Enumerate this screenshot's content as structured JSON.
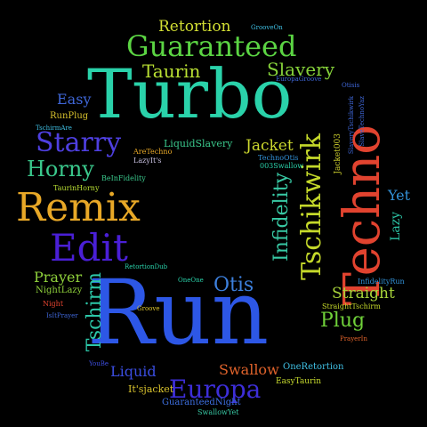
{
  "words": [
    {
      "key": "run",
      "text": "Run",
      "color": "#2d57e6"
    },
    {
      "key": "turbo",
      "text": "Turbo",
      "color": "#2ad2aa"
    },
    {
      "key": "techno",
      "text": "Techno",
      "color": "#e1432f"
    },
    {
      "key": "remix",
      "text": "Remix",
      "color": "#e8a827"
    },
    {
      "key": "edit",
      "text": "Edit",
      "color": "#4a1fd6"
    },
    {
      "key": "guaranteed",
      "text": "Guaranteed",
      "color": "#5bd443"
    },
    {
      "key": "starry",
      "text": "Starry",
      "color": "#4e3fe0"
    },
    {
      "key": "tschikwirk",
      "text": "Tschikwirk",
      "color": "#c4d82a"
    },
    {
      "key": "europa",
      "text": "Europa",
      "color": "#3d2ed8"
    },
    {
      "key": "infidelity",
      "text": "Infidelity",
      "color": "#38c9a4"
    },
    {
      "key": "horny",
      "text": "Horny",
      "color": "#3ac88c"
    },
    {
      "key": "taurin",
      "text": "Taurin",
      "color": "#b9df33"
    },
    {
      "key": "slavery",
      "text": "Slavery",
      "color": "#86d23a"
    },
    {
      "key": "tschirm",
      "text": "Tschirm",
      "color": "#2cc7a8"
    },
    {
      "key": "otis",
      "text": "Otis",
      "color": "#3d80dd"
    },
    {
      "key": "plug",
      "text": "Plug",
      "color": "#6fd039"
    },
    {
      "key": "retortion",
      "text": "Retortion",
      "color": "#d3df33"
    },
    {
      "key": "straight",
      "text": "Straight",
      "color": "#a8d43a"
    },
    {
      "key": "jacket",
      "text": "Jacket",
      "color": "#cdd92e"
    },
    {
      "key": "prayer",
      "text": "Prayer",
      "color": "#8fd13b"
    },
    {
      "key": "swallow",
      "text": "Swallow",
      "color": "#e1632b"
    },
    {
      "key": "liquid",
      "text": "Liquid",
      "color": "#3a4de0"
    },
    {
      "key": "easy",
      "text": "Easy",
      "color": "#3f67d9"
    },
    {
      "key": "yet",
      "text": "Yet",
      "color": "#3292d8"
    },
    {
      "key": "lazy",
      "text": "Lazy",
      "color": "#2cc7a8"
    },
    {
      "key": "liquidslavery",
      "text": "LiquidSlavery",
      "color": "#3ac88c"
    },
    {
      "key": "its_jacket",
      "text": "It'sjacket",
      "color": "#d8c22d"
    },
    {
      "key": "guaranteednight",
      "text": "GuaranteedNight",
      "color": "#3d6fe0"
    },
    {
      "key": "oneretortion",
      "text": "OneRetortion",
      "color": "#3fbfe3"
    },
    {
      "key": "runplug",
      "text": "RunPlug",
      "color": "#d8c22d"
    },
    {
      "key": "nightlazy",
      "text": "NightLazy",
      "color": "#8fd13b"
    },
    {
      "key": "jacket003",
      "text": "Jacket003",
      "color": "#d0d22e"
    },
    {
      "key": "easytaurin",
      "text": "EasyTaurin",
      "color": "#c8dc2e"
    },
    {
      "key": "swallowyet",
      "text": "SwallowYet",
      "color": "#38c9a4"
    },
    {
      "key": "infidelityrun",
      "text": "InfidelityRun",
      "color": "#3292d8"
    },
    {
      "key": "straighttschirm",
      "text": "StraightTschirm",
      "color": "#c4d82a"
    },
    {
      "key": "taurinhorny",
      "text": "TaurinHorny",
      "color": "#b9df33"
    },
    {
      "key": "beinfidelity",
      "text": "BeInFidelity",
      "color": "#3ac88c"
    },
    {
      "key": "areteckno",
      "text": "AreTechno",
      "color": "#e8a827"
    },
    {
      "key": "lazyits",
      "text": "LazyIt's",
      "color": "#c8c0e0"
    },
    {
      "key": "technootis",
      "text": "TechnoOtis",
      "color": "#3292d8"
    },
    {
      "key": "swallow003",
      "text": "003Swallow",
      "color": "#2ad2aa"
    },
    {
      "key": "retortiondub",
      "text": "RetortionDub",
      "color": "#2ad2aa"
    },
    {
      "key": "oneone",
      "text": "OneOne",
      "color": "#2ad2aa"
    },
    {
      "key": "groove",
      "text": "Groove",
      "color": "#d8c22d"
    },
    {
      "key": "night",
      "text": "Night",
      "color": "#e1432f"
    },
    {
      "key": "isitprayer",
      "text": "IsItPrayer",
      "color": "#3f67d9"
    },
    {
      "key": "yoube",
      "text": "YouBe",
      "color": "#3d4ee0"
    },
    {
      "key": "prayerin",
      "text": "PrayerIn",
      "color": "#e1632b"
    },
    {
      "key": "tschirmare",
      "text": "TschirmAre",
      "color": "#3fbfe3"
    },
    {
      "key": "grooveon",
      "text": "GrooveOn",
      "color": "#3fbfe3"
    },
    {
      "key": "europagroove",
      "text": "EuropaGroove",
      "color": "#3f67d9"
    },
    {
      "key": "otisis",
      "text": "Otisis",
      "color": "#3f67d9"
    },
    {
      "key": "slaverytschikwirk",
      "text": "SlaveryTschikwirk",
      "color": "#3f67d9"
    },
    {
      "key": "slavetechnoyaz",
      "text": "SlaveTechnoYaz",
      "color": "#3f67d9"
    }
  ]
}
